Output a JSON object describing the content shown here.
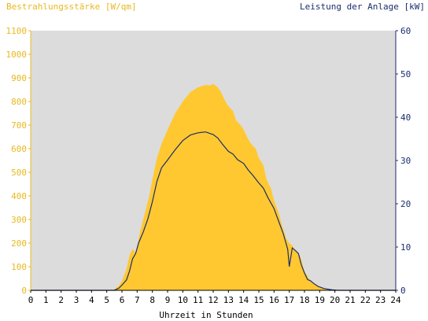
{
  "chart_data": {
    "type": "area",
    "left_axis_label": "Bestrahlungsstärke [W/qm]",
    "right_axis_label": "Leistung der Anlage [kW]",
    "xlabel": "Uhrzeit in Stunden",
    "xlim": [
      0,
      24
    ],
    "ylim_left": [
      0,
      1100
    ],
    "ylim_right": [
      0,
      60
    ],
    "x_ticks": [
      "0",
      "1",
      "2",
      "3",
      "4",
      "5",
      "6",
      "7",
      "8",
      "9",
      "10",
      "11",
      "12",
      "13",
      "14",
      "15",
      "16",
      "17",
      "18",
      "19",
      "20",
      "21",
      "22",
      "23",
      "24"
    ],
    "y_left_ticks": [
      "0",
      "100",
      "200",
      "300",
      "400",
      "500",
      "600",
      "700",
      "800",
      "900",
      "1000",
      "1100"
    ],
    "y_right_ticks": [
      "0",
      "10",
      "20",
      "30",
      "40",
      "50",
      "60"
    ],
    "grid": false,
    "colors": {
      "plot_background": "#dcdcdc",
      "irradiance_fill": "#ffc830",
      "power_line": "#1a2d6e",
      "left_axis_text": "#e8b820",
      "right_axis_text": "#1a2d6e",
      "axis_text": "#000000"
    },
    "series": [
      {
        "name": "Bestrahlungsstärke",
        "axis": "left",
        "style": "area",
        "x": [
          0,
          5.4,
          5.8,
          6.0,
          6.3,
          6.5,
          6.7,
          6.9,
          7.0,
          7.2,
          7.4,
          7.6,
          7.8,
          8.0,
          8.3,
          8.6,
          9.0,
          9.5,
          10.0,
          10.5,
          11.0,
          11.5,
          11.8,
          12.0,
          12.3,
          12.5,
          12.8,
          13.0,
          13.3,
          13.5,
          13.8,
          14.0,
          14.3,
          14.5,
          14.8,
          15.0,
          15.3,
          15.5,
          15.8,
          16.0,
          16.3,
          16.5,
          16.8,
          17.0,
          17.2,
          17.4,
          17.6,
          17.8,
          18.0,
          18.2,
          18.4,
          18.6,
          18.8,
          19.0,
          19.3,
          19.6,
          20.0,
          24
        ],
        "values": [
          0,
          0,
          20,
          40,
          90,
          150,
          175,
          160,
          190,
          250,
          300,
          350,
          400,
          470,
          560,
          620,
          680,
          750,
          800,
          840,
          860,
          870,
          868,
          875,
          860,
          840,
          800,
          780,
          760,
          720,
          700,
          680,
          640,
          620,
          600,
          560,
          530,
          470,
          430,
          380,
          330,
          280,
          220,
          200,
          190,
          170,
          160,
          130,
          80,
          60,
          40,
          30,
          25,
          15,
          8,
          3,
          0,
          0
        ]
      },
      {
        "name": "Leistung der Anlage",
        "axis": "right",
        "style": "line",
        "x": [
          0,
          5.5,
          5.8,
          6.0,
          6.3,
          6.5,
          6.7,
          6.9,
          7.1,
          7.4,
          7.7,
          8.0,
          8.3,
          8.6,
          9.0,
          9.5,
          10.0,
          10.5,
          11.0,
          11.5,
          12.0,
          12.3,
          12.6,
          13.0,
          13.3,
          13.6,
          14.0,
          14.3,
          14.6,
          15.0,
          15.3,
          15.6,
          16.0,
          16.3,
          16.6,
          16.9,
          17.0,
          17.2,
          17.4,
          17.6,
          17.8,
          18.0,
          18.2,
          18.4,
          18.6,
          18.9,
          19.3,
          19.8,
          20.2,
          24
        ],
        "values": [
          0,
          0,
          0.5,
          1.2,
          2.4,
          4.5,
          7.3,
          8.5,
          11.0,
          13.5,
          16.5,
          20.5,
          25.2,
          28.3,
          30.1,
          32.5,
          34.6,
          35.9,
          36.4,
          36.6,
          36.0,
          35.2,
          33.8,
          32.1,
          31.5,
          30.2,
          29.3,
          27.8,
          26.6,
          24.8,
          23.6,
          21.4,
          18.9,
          16.0,
          13.2,
          9.5,
          5.5,
          9.8,
          9.2,
          8.5,
          5.8,
          4.0,
          2.5,
          2.2,
          1.6,
          0.9,
          0.4,
          0.1,
          0,
          0
        ]
      }
    ]
  }
}
